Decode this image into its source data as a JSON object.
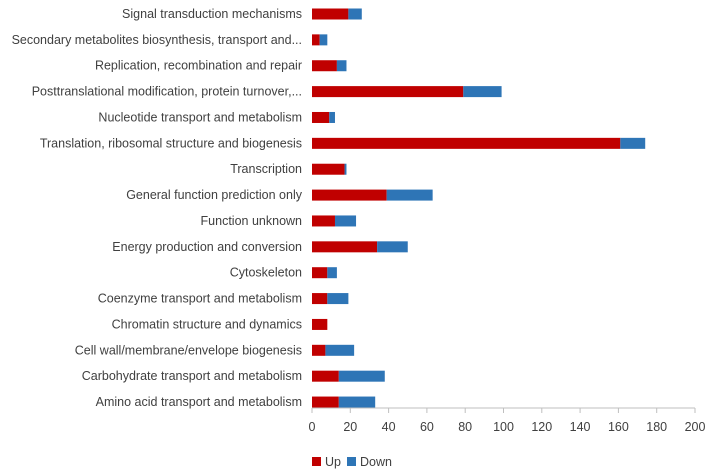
{
  "chart_data": {
    "type": "bar",
    "orientation": "horizontal",
    "stacked": true,
    "categories": [
      "Signal transduction mechanisms",
      "Secondary metabolites biosynthesis, transport and...",
      "Replication, recombination and repair",
      "Posttranslational modification, protein turnover,...",
      "Nucleotide transport and metabolism",
      "Translation, ribosomal structure and biogenesis",
      "Transcription",
      "General function prediction only",
      "Function unknown",
      "Energy production and conversion",
      "Cytoskeleton",
      "Coenzyme transport and metabolism",
      "Chromatin structure and dynamics",
      "Cell wall/membrane/envelope biogenesis",
      "Carbohydrate transport and metabolism",
      "Amino acid transport and metabolism"
    ],
    "series": [
      {
        "name": "Up",
        "color": "#c00000",
        "values": [
          19,
          4,
          13,
          79,
          9,
          161,
          17,
          39,
          12,
          34,
          8,
          8,
          8,
          7,
          14,
          14
        ]
      },
      {
        "name": "Down",
        "color": "#2e75b6",
        "values": [
          7,
          4,
          5,
          20,
          3,
          13,
          1,
          24,
          11,
          16,
          5,
          11,
          0,
          15,
          24,
          19
        ]
      }
    ],
    "xlim": [
      0,
      200
    ],
    "xticks": [
      "0",
      "20",
      "40",
      "60",
      "80",
      "100",
      "120",
      "140",
      "160",
      "180",
      "200"
    ],
    "grid": false,
    "legend_position": "bottom"
  }
}
